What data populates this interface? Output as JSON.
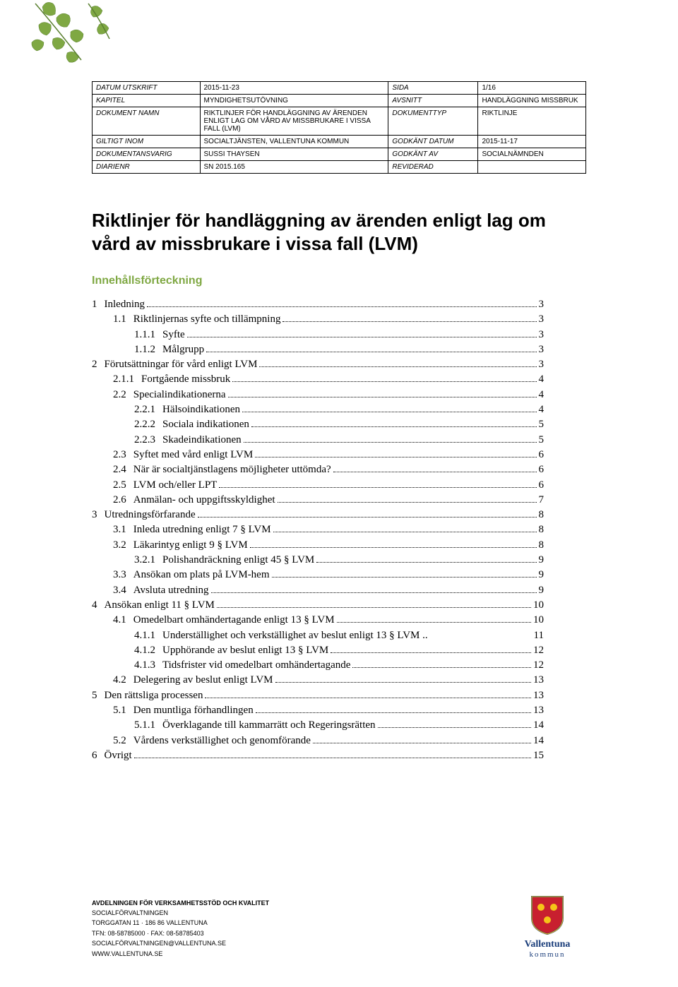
{
  "decoration": {
    "leaf_color": "#7fa843",
    "stem_color": "#5a8030"
  },
  "meta": {
    "rows": [
      [
        {
          "l": "DATUM UTSKRIFT",
          "v": "2015-11-23"
        },
        {
          "l": "SIDA",
          "v": "1/16"
        }
      ],
      [
        {
          "l": "KAPITEL",
          "v": "MYNDIGHETSUTÖVNING"
        },
        {
          "l": "AVSNITT",
          "v": "HANDLÄGGNING MISSBRUK"
        }
      ],
      [
        {
          "l": "DOKUMENT NAMN",
          "v": "RIKTLINJER FÖR HANDLÄGGNING AV ÄRENDEN ENLIGT LAG OM VÅRD AV MISSBRUKARE I VISSA FALL (LVM)"
        },
        {
          "l": "DOKUMENTTYP",
          "v": "RIKTLINJE"
        }
      ],
      [
        {
          "l": "GILTIGT INOM",
          "v": "SOCIALTJÄNSTEN, VALLENTUNA KOMMUN"
        },
        {
          "l": "GODKÄNT DATUM",
          "v": "2015-11-17"
        }
      ],
      [
        {
          "l": "DOKUMENTANSVARIG",
          "v": "SUSSI THAYSEN"
        },
        {
          "l": "GODKÄNT AV",
          "v": "SOCIALNÄMNDEN"
        }
      ],
      [
        {
          "l": "DIARIENR",
          "v": "SN 2015.165"
        },
        {
          "l": "REVIDERAD",
          "v": ""
        }
      ]
    ]
  },
  "title": "Riktlinjer för handläggning av ärenden enligt lag om vård av missbrukare i vissa fall (LVM)",
  "toc_heading": "Innehållsförteckning",
  "toc": [
    {
      "lvl": 1,
      "num": "1",
      "text": "Inledning",
      "page": "3"
    },
    {
      "lvl": 2,
      "num": "1.1",
      "text": "Riktlinjernas syfte och tillämpning",
      "page": "3"
    },
    {
      "lvl": 3,
      "num": "1.1.1",
      "text": "Syfte",
      "page": "3"
    },
    {
      "lvl": 3,
      "num": "1.1.2",
      "text": "Målgrupp",
      "page": "3"
    },
    {
      "lvl": 1,
      "num": "2",
      "text": "Förutsättningar för vård enligt LVM",
      "page": "3"
    },
    {
      "lvl": 2,
      "num": "2.1.1",
      "text": "Fortgående missbruk",
      "page": "4"
    },
    {
      "lvl": 2,
      "num": "2.2",
      "text": "Specialindikationerna",
      "page": "4"
    },
    {
      "lvl": 3,
      "num": "2.2.1",
      "text": "Hälsoindikationen",
      "page": "4"
    },
    {
      "lvl": 3,
      "num": "2.2.2",
      "text": "Sociala indikationen",
      "page": "5"
    },
    {
      "lvl": 3,
      "num": "2.2.3",
      "text": "Skadeindikationen",
      "page": "5"
    },
    {
      "lvl": 2,
      "num": "2.3",
      "text": "Syftet med vård enligt LVM",
      "page": "6"
    },
    {
      "lvl": 2,
      "num": "2.4",
      "text": "När är socialtjänstlagens möjligheter uttömda?",
      "page": "6"
    },
    {
      "lvl": 2,
      "num": "2.5",
      "text": "LVM och/eller LPT",
      "page": "6"
    },
    {
      "lvl": 2,
      "num": "2.6",
      "text": "Anmälan- och uppgiftsskyldighet",
      "page": "7"
    },
    {
      "lvl": 1,
      "num": "3",
      "text": "Utredningsförfarande",
      "page": "8"
    },
    {
      "lvl": 2,
      "num": "3.1",
      "text": "Inleda utredning enligt 7 § LVM",
      "page": "8"
    },
    {
      "lvl": 2,
      "num": "3.2",
      "text": "Läkarintyg enligt 9 § LVM",
      "page": "8"
    },
    {
      "lvl": 3,
      "num": "3.2.1",
      "text": "Polishandräckning enligt 45 § LVM",
      "page": "9"
    },
    {
      "lvl": 2,
      "num": "3.3",
      "text": "Ansökan om plats på LVM-hem",
      "page": "9"
    },
    {
      "lvl": 2,
      "num": "3.4",
      "text": "Avsluta utredning",
      "page": "9"
    },
    {
      "lvl": 1,
      "num": "4",
      "text": "Ansökan enligt 11 § LVM",
      "page": "10"
    },
    {
      "lvl": 2,
      "num": "4.1",
      "text": "Omedelbart omhändertagande enligt 13 § LVM",
      "page": "10"
    },
    {
      "lvl": 3,
      "num": "4.1.1",
      "text": "Underställighet och verkställighet av beslut enligt 13 § LVM",
      "page": "11"
    },
    {
      "lvl": 3,
      "num": "4.1.2",
      "text": "Upphörande av beslut enligt 13 § LVM",
      "page": "12"
    },
    {
      "lvl": 3,
      "num": "4.1.3",
      "text": "Tidsfrister vid omedelbart omhändertagande",
      "page": "12"
    },
    {
      "lvl": 2,
      "num": "4.2",
      "text": "Delegering av beslut enligt LVM",
      "page": "13"
    },
    {
      "lvl": 1,
      "num": "5",
      "text": "Den rättsliga processen",
      "page": "13"
    },
    {
      "lvl": 2,
      "num": "5.1",
      "text": "Den muntliga förhandlingen",
      "page": "13"
    },
    {
      "lvl": 3,
      "num": "5.1.1",
      "text": "Överklagande till kammarrätt och Regeringsrätten",
      "page": "14"
    },
    {
      "lvl": 2,
      "num": "5.2",
      "text": "Vårdens verkställighet och genomförande",
      "page": "14"
    },
    {
      "lvl": 1,
      "num": "6",
      "text": "Övrigt",
      "page": "15"
    }
  ],
  "footer": {
    "line1": "AVDELNINGEN FÖR VERKSAMHETSSTÖD OCH KVALITET",
    "line2": "SOCIALFÖRVALTNINGEN",
    "line3": "TORGGATAN 11 · 186 86 VALLENTUNA",
    "line4": "TFN: 08-58785000 · FAX: 08-58785403",
    "line5": "SOCIALFÖRVALTNINGEN@VALLENTUNA.SE",
    "line6": "WWW.VALLENTUNA.SE"
  },
  "logo": {
    "name": "Vallentuna",
    "sub": "kommun",
    "shield_fill": "#c8202f",
    "shield_accent": "#f5c518",
    "text_color": "#1a3d7a"
  }
}
